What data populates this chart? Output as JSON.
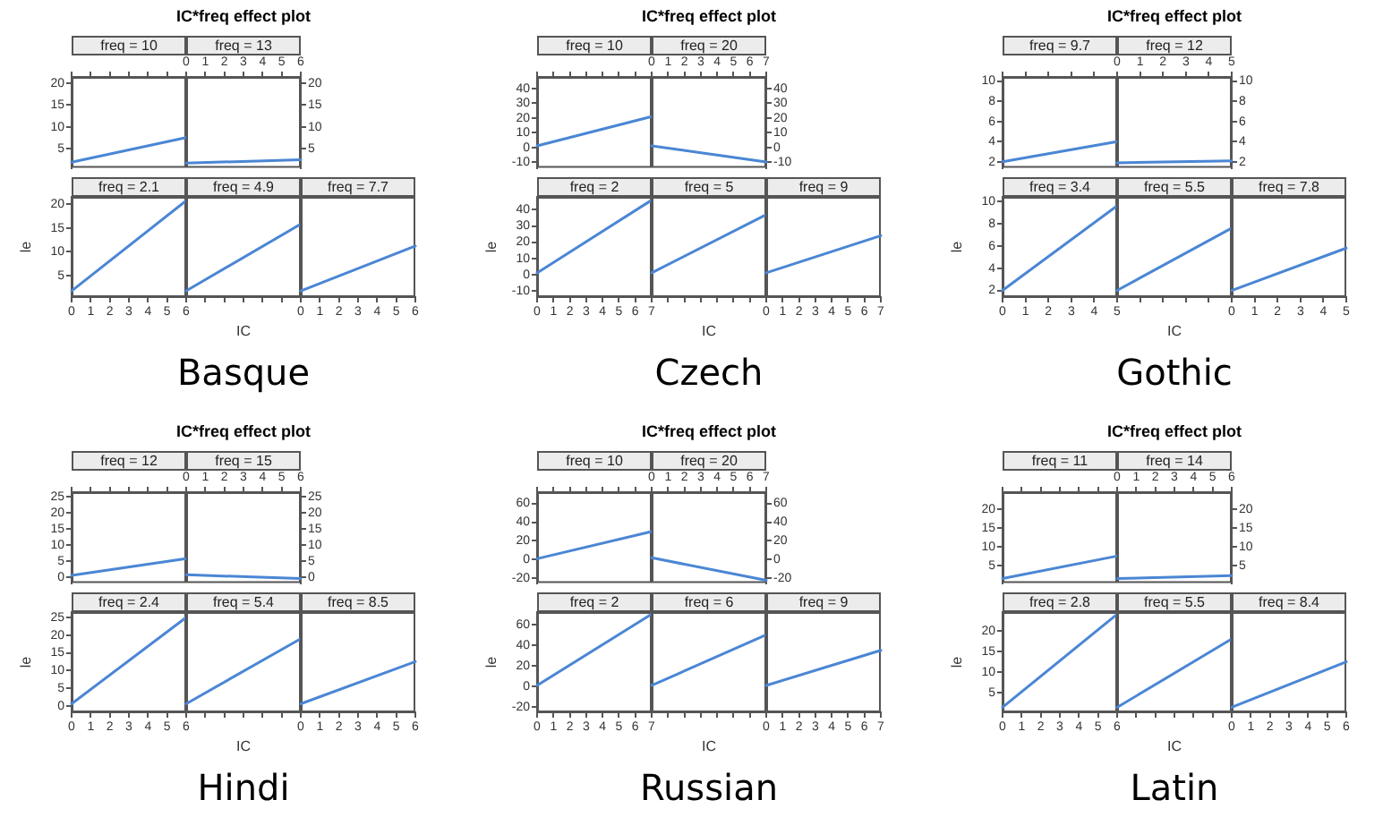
{
  "chart_data": [
    {
      "type": "line",
      "title": "freq = 10",
      "annotations": [
        "IC*freq effect plot",
        "Basque"
      ],
      "x": [
        0,
        6
      ],
      "values": [
        1.8,
        7.5
      ],
      "color": "#4a86d4",
      "xlim": [
        0,
        6
      ],
      "xticks": [
        0,
        1,
        2,
        3,
        4,
        5,
        6
      ],
      "ylim": [
        0.5,
        21.5
      ],
      "yticks": [
        5,
        10,
        15,
        20
      ],
      "tick_labels": "y"
    },
    {
      "type": "line",
      "title": "freq = 13",
      "x": [
        0,
        6
      ],
      "values": [
        1.6,
        2.4
      ],
      "color": "#4a86d4",
      "xlim": [
        0,
        6
      ],
      "xticks": [
        0,
        1,
        2,
        3,
        4,
        5,
        6
      ],
      "ylim": [
        0.5,
        21.5
      ],
      "yticks": [
        5,
        10,
        15,
        20
      ]
    },
    {
      "type": "line",
      "title": "freq = 2.1",
      "ylabel": "le",
      "x": [
        0,
        6
      ],
      "values": [
        1.8,
        20.7
      ],
      "color": "#4a86d4",
      "xlim": [
        0,
        6
      ],
      "xticks": [
        0,
        1,
        2,
        3,
        4,
        5,
        6
      ],
      "ylim": [
        0.5,
        21.5
      ],
      "yticks": [
        5,
        10,
        15,
        20
      ]
    },
    {
      "type": "line",
      "title": "freq = 4.9",
      "xlabel": "IC",
      "x": [
        0,
        6
      ],
      "values": [
        1.8,
        15.8
      ],
      "color": "#4a86d4",
      "xlim": [
        0,
        6
      ],
      "xticks": [
        0,
        1,
        2,
        3,
        4,
        5,
        6
      ],
      "ylim": [
        0.5,
        21.5
      ],
      "yticks": [
        5,
        10,
        15,
        20
      ],
      "tick_labels": false
    },
    {
      "type": "line",
      "title": "freq = 7.7",
      "x": [
        0,
        6
      ],
      "values": [
        1.8,
        11.2
      ],
      "color": "#4a86d4",
      "xlim": [
        0,
        6
      ],
      "xticks": [
        0,
        1,
        2,
        3,
        4,
        5,
        6
      ],
      "ylim": [
        0.5,
        21.5
      ],
      "yticks": [
        5,
        10,
        15,
        20
      ],
      "tick_labels": "x"
    },
    {
      "type": "line",
      "title": "freq = 10",
      "annotations": [
        "IC*freq effect plot",
        "Czech"
      ],
      "x": [
        0,
        7
      ],
      "values": [
        1,
        21
      ],
      "color": "#4a86d4",
      "xlim": [
        0,
        7
      ],
      "xticks": [
        0,
        1,
        2,
        3,
        4,
        5,
        6,
        7
      ],
      "ylim": [
        -14,
        48
      ],
      "yticks": [
        -10,
        0,
        10,
        20,
        30,
        40
      ],
      "tick_labels": "y"
    },
    {
      "type": "line",
      "title": "freq = 20",
      "x": [
        0,
        7
      ],
      "values": [
        1,
        -10
      ],
      "color": "#4a86d4",
      "xlim": [
        0,
        7
      ],
      "xticks": [
        0,
        1,
        2,
        3,
        4,
        5,
        6,
        7
      ],
      "ylim": [
        -14,
        48
      ],
      "yticks": [
        -10,
        0,
        10,
        20,
        30,
        40
      ]
    },
    {
      "type": "line",
      "title": "freq = 2",
      "ylabel": "le",
      "x": [
        0,
        7
      ],
      "values": [
        1,
        46
      ],
      "color": "#4a86d4",
      "xlim": [
        0,
        7
      ],
      "xticks": [
        0,
        1,
        2,
        3,
        4,
        5,
        6,
        7
      ],
      "ylim": [
        -14,
        48
      ],
      "yticks": [
        -10,
        0,
        10,
        20,
        30,
        40
      ]
    },
    {
      "type": "line",
      "title": "freq = 5",
      "xlabel": "IC",
      "x": [
        0,
        7
      ],
      "values": [
        1,
        37
      ],
      "color": "#4a86d4",
      "xlim": [
        0,
        7
      ],
      "xticks": [
        0,
        1,
        2,
        3,
        4,
        5,
        6,
        7
      ],
      "ylim": [
        -14,
        48
      ],
      "yticks": [
        -10,
        0,
        10,
        20,
        30,
        40
      ],
      "tick_labels": false
    },
    {
      "type": "line",
      "title": "freq = 9",
      "x": [
        0,
        7
      ],
      "values": [
        1,
        24
      ],
      "color": "#4a86d4",
      "xlim": [
        0,
        7
      ],
      "xticks": [
        0,
        1,
        2,
        3,
        4,
        5,
        6,
        7
      ],
      "ylim": [
        -14,
        48
      ],
      "yticks": [
        -10,
        0,
        10,
        20,
        30,
        40
      ],
      "tick_labels": "x"
    },
    {
      "type": "line",
      "title": "freq = 9.7",
      "annotations": [
        "IC*freq effect plot",
        "Gothic"
      ],
      "x": [
        0,
        5
      ],
      "values": [
        2,
        4
      ],
      "color": "#4a86d4",
      "xlim": [
        0,
        5
      ],
      "xticks": [
        0,
        1,
        2,
        3,
        4,
        5
      ],
      "ylim": [
        1.4,
        10.4
      ],
      "yticks": [
        2,
        4,
        6,
        8,
        10
      ],
      "tick_labels": "y"
    },
    {
      "type": "line",
      "title": "freq = 12",
      "x": [
        0,
        5
      ],
      "values": [
        1.9,
        2.1
      ],
      "color": "#4a86d4",
      "xlim": [
        0,
        5
      ],
      "xticks": [
        0,
        1,
        2,
        3,
        4,
        5
      ],
      "ylim": [
        1.4,
        10.4
      ],
      "yticks": [
        2,
        4,
        6,
        8,
        10
      ]
    },
    {
      "type": "line",
      "title": "freq = 3.4",
      "ylabel": "le",
      "x": [
        0,
        5
      ],
      "values": [
        2,
        9.6
      ],
      "color": "#4a86d4",
      "xlim": [
        0,
        5
      ],
      "xticks": [
        0,
        1,
        2,
        3,
        4,
        5
      ],
      "ylim": [
        1.4,
        10.4
      ],
      "yticks": [
        2,
        4,
        6,
        8,
        10
      ]
    },
    {
      "type": "line",
      "title": "freq = 5.5",
      "xlabel": "IC",
      "x": [
        0,
        5
      ],
      "values": [
        2,
        7.6
      ],
      "color": "#4a86d4",
      "xlim": [
        0,
        5
      ],
      "xticks": [
        0,
        1,
        2,
        3,
        4,
        5
      ],
      "ylim": [
        1.4,
        10.4
      ],
      "yticks": [
        2,
        4,
        6,
        8,
        10
      ],
      "tick_labels": false
    },
    {
      "type": "line",
      "title": "freq = 7.8",
      "x": [
        0,
        5
      ],
      "values": [
        2,
        5.8
      ],
      "color": "#4a86d4",
      "xlim": [
        0,
        5
      ],
      "xticks": [
        0,
        1,
        2,
        3,
        4,
        5
      ],
      "ylim": [
        1.4,
        10.4
      ],
      "yticks": [
        2,
        4,
        6,
        8,
        10
      ],
      "tick_labels": "x"
    },
    {
      "type": "line",
      "title": "freq = 12",
      "annotations": [
        "IC*freq effect plot",
        "Hindi"
      ],
      "x": [
        0,
        6
      ],
      "values": [
        0.6,
        5.8
      ],
      "color": "#4a86d4",
      "xlim": [
        0,
        6
      ],
      "xticks": [
        0,
        1,
        2,
        3,
        4,
        5,
        6
      ],
      "ylim": [
        -1.8,
        26.5
      ],
      "yticks": [
        0,
        5,
        10,
        15,
        20,
        25
      ],
      "tick_labels": "y"
    },
    {
      "type": "line",
      "title": "freq = 15",
      "x": [
        0,
        6
      ],
      "values": [
        0.8,
        -0.4
      ],
      "color": "#4a86d4",
      "xlim": [
        0,
        6
      ],
      "xticks": [
        0,
        1,
        2,
        3,
        4,
        5,
        6
      ],
      "ylim": [
        -1.8,
        26.5
      ],
      "yticks": [
        0,
        5,
        10,
        15,
        20,
        25
      ]
    },
    {
      "type": "line",
      "title": "freq = 2.4",
      "ylabel": "le",
      "x": [
        0,
        6
      ],
      "values": [
        0.6,
        25
      ],
      "color": "#4a86d4",
      "xlim": [
        0,
        6
      ],
      "xticks": [
        0,
        1,
        2,
        3,
        4,
        5,
        6
      ],
      "ylim": [
        -1.8,
        26.5
      ],
      "yticks": [
        0,
        5,
        10,
        15,
        20,
        25
      ]
    },
    {
      "type": "line",
      "title": "freq = 5.4",
      "xlabel": "IC",
      "x": [
        0,
        6
      ],
      "values": [
        0.6,
        19
      ],
      "color": "#4a86d4",
      "xlim": [
        0,
        6
      ],
      "xticks": [
        0,
        1,
        2,
        3,
        4,
        5,
        6
      ],
      "ylim": [
        -1.8,
        26.5
      ],
      "yticks": [
        0,
        5,
        10,
        15,
        20,
        25
      ],
      "tick_labels": false
    },
    {
      "type": "line",
      "title": "freq = 8.5",
      "x": [
        0,
        6
      ],
      "values": [
        0.6,
        12.5
      ],
      "color": "#4a86d4",
      "xlim": [
        0,
        6
      ],
      "xticks": [
        0,
        1,
        2,
        3,
        4,
        5,
        6
      ],
      "ylim": [
        -1.8,
        26.5
      ],
      "yticks": [
        0,
        5,
        10,
        15,
        20,
        25
      ],
      "tick_labels": "x"
    },
    {
      "type": "line",
      "title": "freq = 10",
      "annotations": [
        "IC*freq effect plot",
        "Russian"
      ],
      "x": [
        0,
        7
      ],
      "values": [
        1,
        30
      ],
      "color": "#4a86d4",
      "xlim": [
        0,
        7
      ],
      "xticks": [
        0,
        1,
        2,
        3,
        4,
        5,
        6,
        7
      ],
      "ylim": [
        -25,
        72
      ],
      "yticks": [
        -20,
        0,
        20,
        40,
        60
      ],
      "tick_labels": "y"
    },
    {
      "type": "line",
      "title": "freq = 20",
      "x": [
        0,
        7
      ],
      "values": [
        2,
        -22
      ],
      "color": "#4a86d4",
      "xlim": [
        0,
        7
      ],
      "xticks": [
        0,
        1,
        2,
        3,
        4,
        5,
        6,
        7
      ],
      "ylim": [
        -25,
        72
      ],
      "yticks": [
        -20,
        0,
        20,
        40,
        60
      ]
    },
    {
      "type": "line",
      "title": "freq = 2",
      "ylabel": "le",
      "x": [
        0,
        7
      ],
      "values": [
        1,
        70
      ],
      "color": "#4a86d4",
      "xlim": [
        0,
        7
      ],
      "xticks": [
        0,
        1,
        2,
        3,
        4,
        5,
        6,
        7
      ],
      "ylim": [
        -25,
        72
      ],
      "yticks": [
        -20,
        0,
        20,
        40,
        60
      ]
    },
    {
      "type": "line",
      "title": "freq = 6",
      "xlabel": "IC",
      "x": [
        0,
        7
      ],
      "values": [
        1,
        50
      ],
      "color": "#4a86d4",
      "xlim": [
        0,
        7
      ],
      "xticks": [
        0,
        1,
        2,
        3,
        4,
        5,
        6,
        7
      ],
      "ylim": [
        -25,
        72
      ],
      "yticks": [
        -20,
        0,
        20,
        40,
        60
      ],
      "tick_labels": false
    },
    {
      "type": "line",
      "title": "freq = 9",
      "x": [
        0,
        7
      ],
      "values": [
        1,
        35
      ],
      "color": "#4a86d4",
      "xlim": [
        0,
        7
      ],
      "xticks": [
        0,
        1,
        2,
        3,
        4,
        5,
        6,
        7
      ],
      "ylim": [
        -25,
        72
      ],
      "yticks": [
        -20,
        0,
        20,
        40,
        60
      ],
      "tick_labels": "x"
    },
    {
      "type": "line",
      "title": "freq = 11",
      "annotations": [
        "IC*freq effect plot",
        "Latin"
      ],
      "x": [
        0,
        6
      ],
      "values": [
        1.5,
        7.5
      ],
      "color": "#4a86d4",
      "xlim": [
        0,
        6
      ],
      "xticks": [
        0,
        1,
        2,
        3,
        4,
        5,
        6
      ],
      "ylim": [
        0.3,
        24.5
      ],
      "yticks": [
        5,
        10,
        15,
        20
      ],
      "tick_labels": "y"
    },
    {
      "type": "line",
      "title": "freq = 14",
      "x": [
        0,
        6
      ],
      "values": [
        1.5,
        2.3
      ],
      "color": "#4a86d4",
      "xlim": [
        0,
        6
      ],
      "xticks": [
        0,
        1,
        2,
        3,
        4,
        5,
        6
      ],
      "ylim": [
        0.3,
        24.5
      ],
      "yticks": [
        5,
        10,
        15,
        20
      ]
    },
    {
      "type": "line",
      "title": "freq = 2.8",
      "ylabel": "le",
      "x": [
        0,
        6
      ],
      "values": [
        1.5,
        24
      ],
      "color": "#4a86d4",
      "xlim": [
        0,
        6
      ],
      "xticks": [
        0,
        1,
        2,
        3,
        4,
        5,
        6
      ],
      "ylim": [
        0.3,
        24.5
      ],
      "yticks": [
        5,
        10,
        15,
        20
      ]
    },
    {
      "type": "line",
      "title": "freq = 5.5",
      "xlabel": "IC",
      "x": [
        0,
        6
      ],
      "values": [
        1.5,
        18
      ],
      "color": "#4a86d4",
      "xlim": [
        0,
        6
      ],
      "xticks": [
        0,
        1,
        2,
        3,
        4,
        5,
        6
      ],
      "ylim": [
        0.3,
        24.5
      ],
      "yticks": [
        5,
        10,
        15,
        20
      ],
      "tick_labels": false
    },
    {
      "type": "line",
      "title": "freq = 8.4",
      "x": [
        0,
        6
      ],
      "values": [
        1.5,
        12.5
      ],
      "color": "#4a86d4",
      "xlim": [
        0,
        6
      ],
      "xticks": [
        0,
        1,
        2,
        3,
        4,
        5,
        6
      ],
      "ylim": [
        0.3,
        24.5
      ],
      "yticks": [
        5,
        10,
        15,
        20
      ],
      "tick_labels": "x"
    }
  ]
}
